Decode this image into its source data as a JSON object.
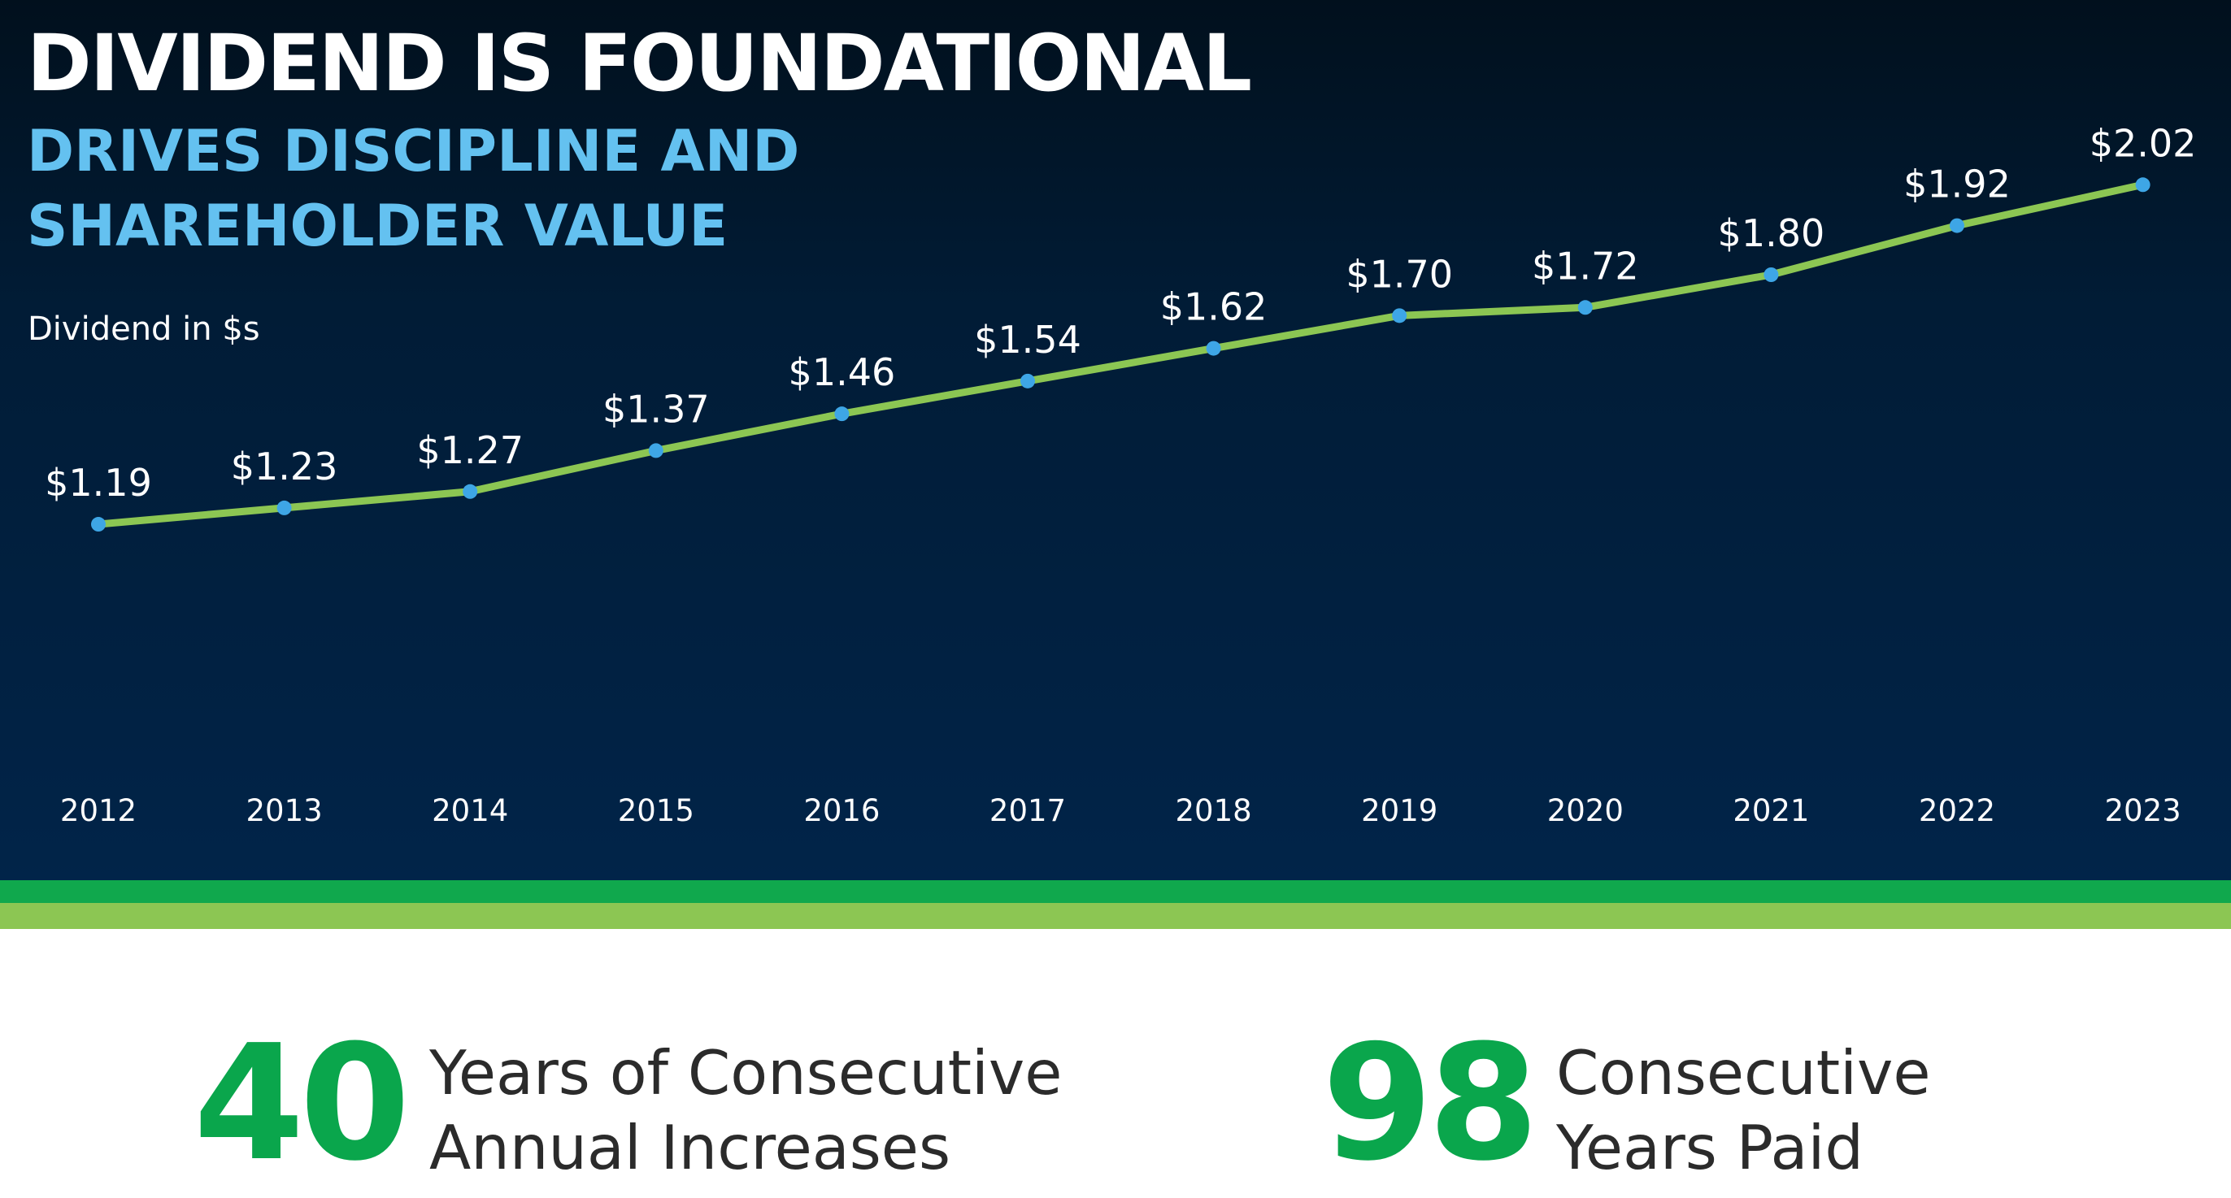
{
  "header": {
    "title": "DIVIDEND IS FOUNDATIONAL",
    "subtitle_line1": "DRIVES DISCIPLINE AND",
    "subtitle_line2": "SHAREHOLDER VALUE"
  },
  "colors": {
    "background_dark": "#011c36",
    "accent_green": "#0aa64c",
    "accent_light_green": "#8cc653",
    "line_green": "#8cc653",
    "marker_blue": "#3ea6e6",
    "subtitle_blue": "#64c1f0"
  },
  "chart_data": {
    "type": "line",
    "title": "DIVIDEND IS FOUNDATIONAL",
    "ylabel": "Dividend in $s",
    "xlabel": "",
    "categories": [
      "2012",
      "2013",
      "2014",
      "2015",
      "2016",
      "2017",
      "2018",
      "2019",
      "2020",
      "2021",
      "2022",
      "2023"
    ],
    "values": [
      1.19,
      1.23,
      1.27,
      1.37,
      1.46,
      1.54,
      1.62,
      1.7,
      1.72,
      1.8,
      1.92,
      2.02
    ],
    "data_labels": [
      "$1.19",
      "$1.23",
      "$1.27",
      "$1.37",
      "$1.46",
      "$1.54",
      "$1.62",
      "$1.70",
      "$1.72",
      "$1.80",
      "$1.92",
      "$2.02"
    ],
    "ylim": [
      0.6,
      2.1
    ],
    "grid": false,
    "legend": "none"
  },
  "stats": [
    {
      "number": "40",
      "label_line1": "Years of Consecutive",
      "label_line2": "Annual Increases"
    },
    {
      "number": "98",
      "label_line1": "Consecutive",
      "label_line2": "Years Paid"
    }
  ]
}
